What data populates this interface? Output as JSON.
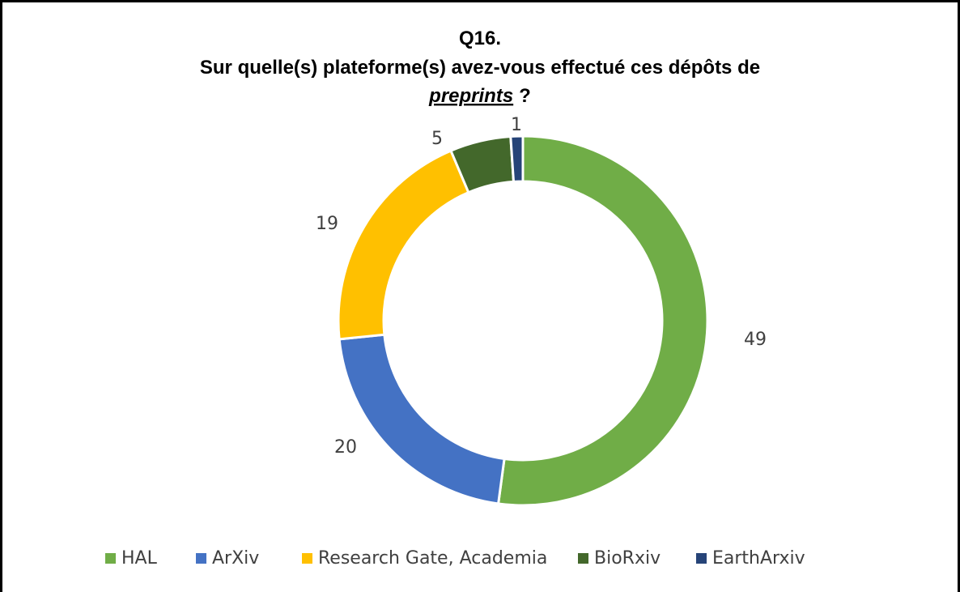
{
  "chart_data": {
    "type": "donut",
    "title": [
      "Q16.",
      "Sur quelle(s) plateforme(s) avez-vous effectué ces dépôts de",
      "preprints",
      "?"
    ],
    "series": [
      {
        "name": "HAL",
        "color": "#70ad47",
        "values": [
          49
        ]
      },
      {
        "name": "ArXiv",
        "color": "#4472c4",
        "values": [
          20
        ]
      },
      {
        "name": "Research Gate, Academia",
        "color": "#ffc000",
        "values": [
          19
        ]
      },
      {
        "name": "BioRxiv",
        "color": "#43682b",
        "values": [
          5
        ]
      },
      {
        "name": "EarthArxiv",
        "color": "#264478",
        "values": [
          1
        ]
      }
    ],
    "legend": "bottom"
  }
}
